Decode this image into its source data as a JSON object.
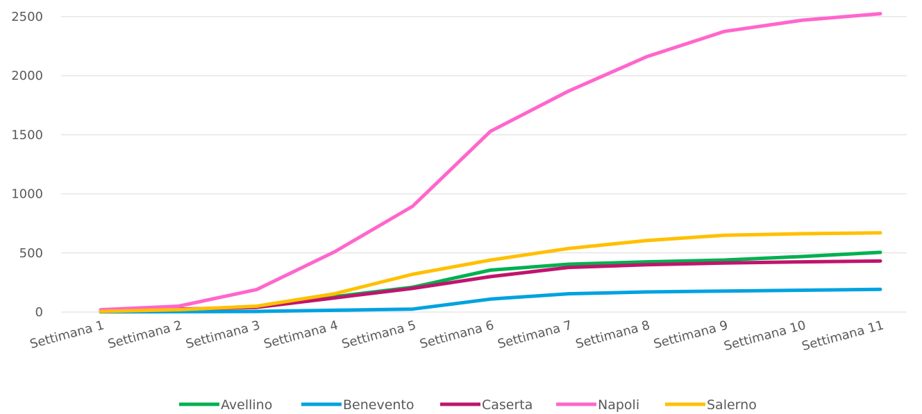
{
  "chart_data": {
    "type": "line",
    "title": "",
    "xlabel": "",
    "ylabel": "",
    "ylim": [
      0,
      2500
    ],
    "yticks": [
      "0",
      "500",
      "1000",
      "1500",
      "2000",
      "2500"
    ],
    "grid": true,
    "legend_position": "bottom",
    "categories": [
      "Settimana 1",
      "Settimana 2",
      "Settimana 3",
      "Settimana 4",
      "Settimana 5",
      "Settimana 6",
      "Settimana 7",
      "Settimana 8",
      "Settimana 9",
      "Settimana 10",
      "Settimana 11"
    ],
    "series": [
      {
        "name": "Avellino",
        "color": "#00b050",
        "values": [
          5,
          20,
          45,
          130,
          210,
          355,
          405,
          425,
          440,
          470,
          505
        ]
      },
      {
        "name": "Benevento",
        "color": "#00a2e0",
        "values": [
          2,
          3,
          5,
          15,
          25,
          110,
          155,
          170,
          178,
          185,
          192
        ]
      },
      {
        "name": "Caserta",
        "color": "#c0146c",
        "values": [
          5,
          25,
          40,
          120,
          200,
          300,
          378,
          400,
          415,
          425,
          432
        ]
      },
      {
        "name": "Napoli",
        "color": "#ff66cc",
        "values": [
          20,
          50,
          190,
          510,
          895,
          1530,
          1870,
          2160,
          2375,
          2470,
          2525
        ]
      },
      {
        "name": "Salerno",
        "color": "#ffc000",
        "values": [
          5,
          20,
          50,
          155,
          320,
          440,
          538,
          605,
          650,
          663,
          670
        ]
      }
    ]
  }
}
